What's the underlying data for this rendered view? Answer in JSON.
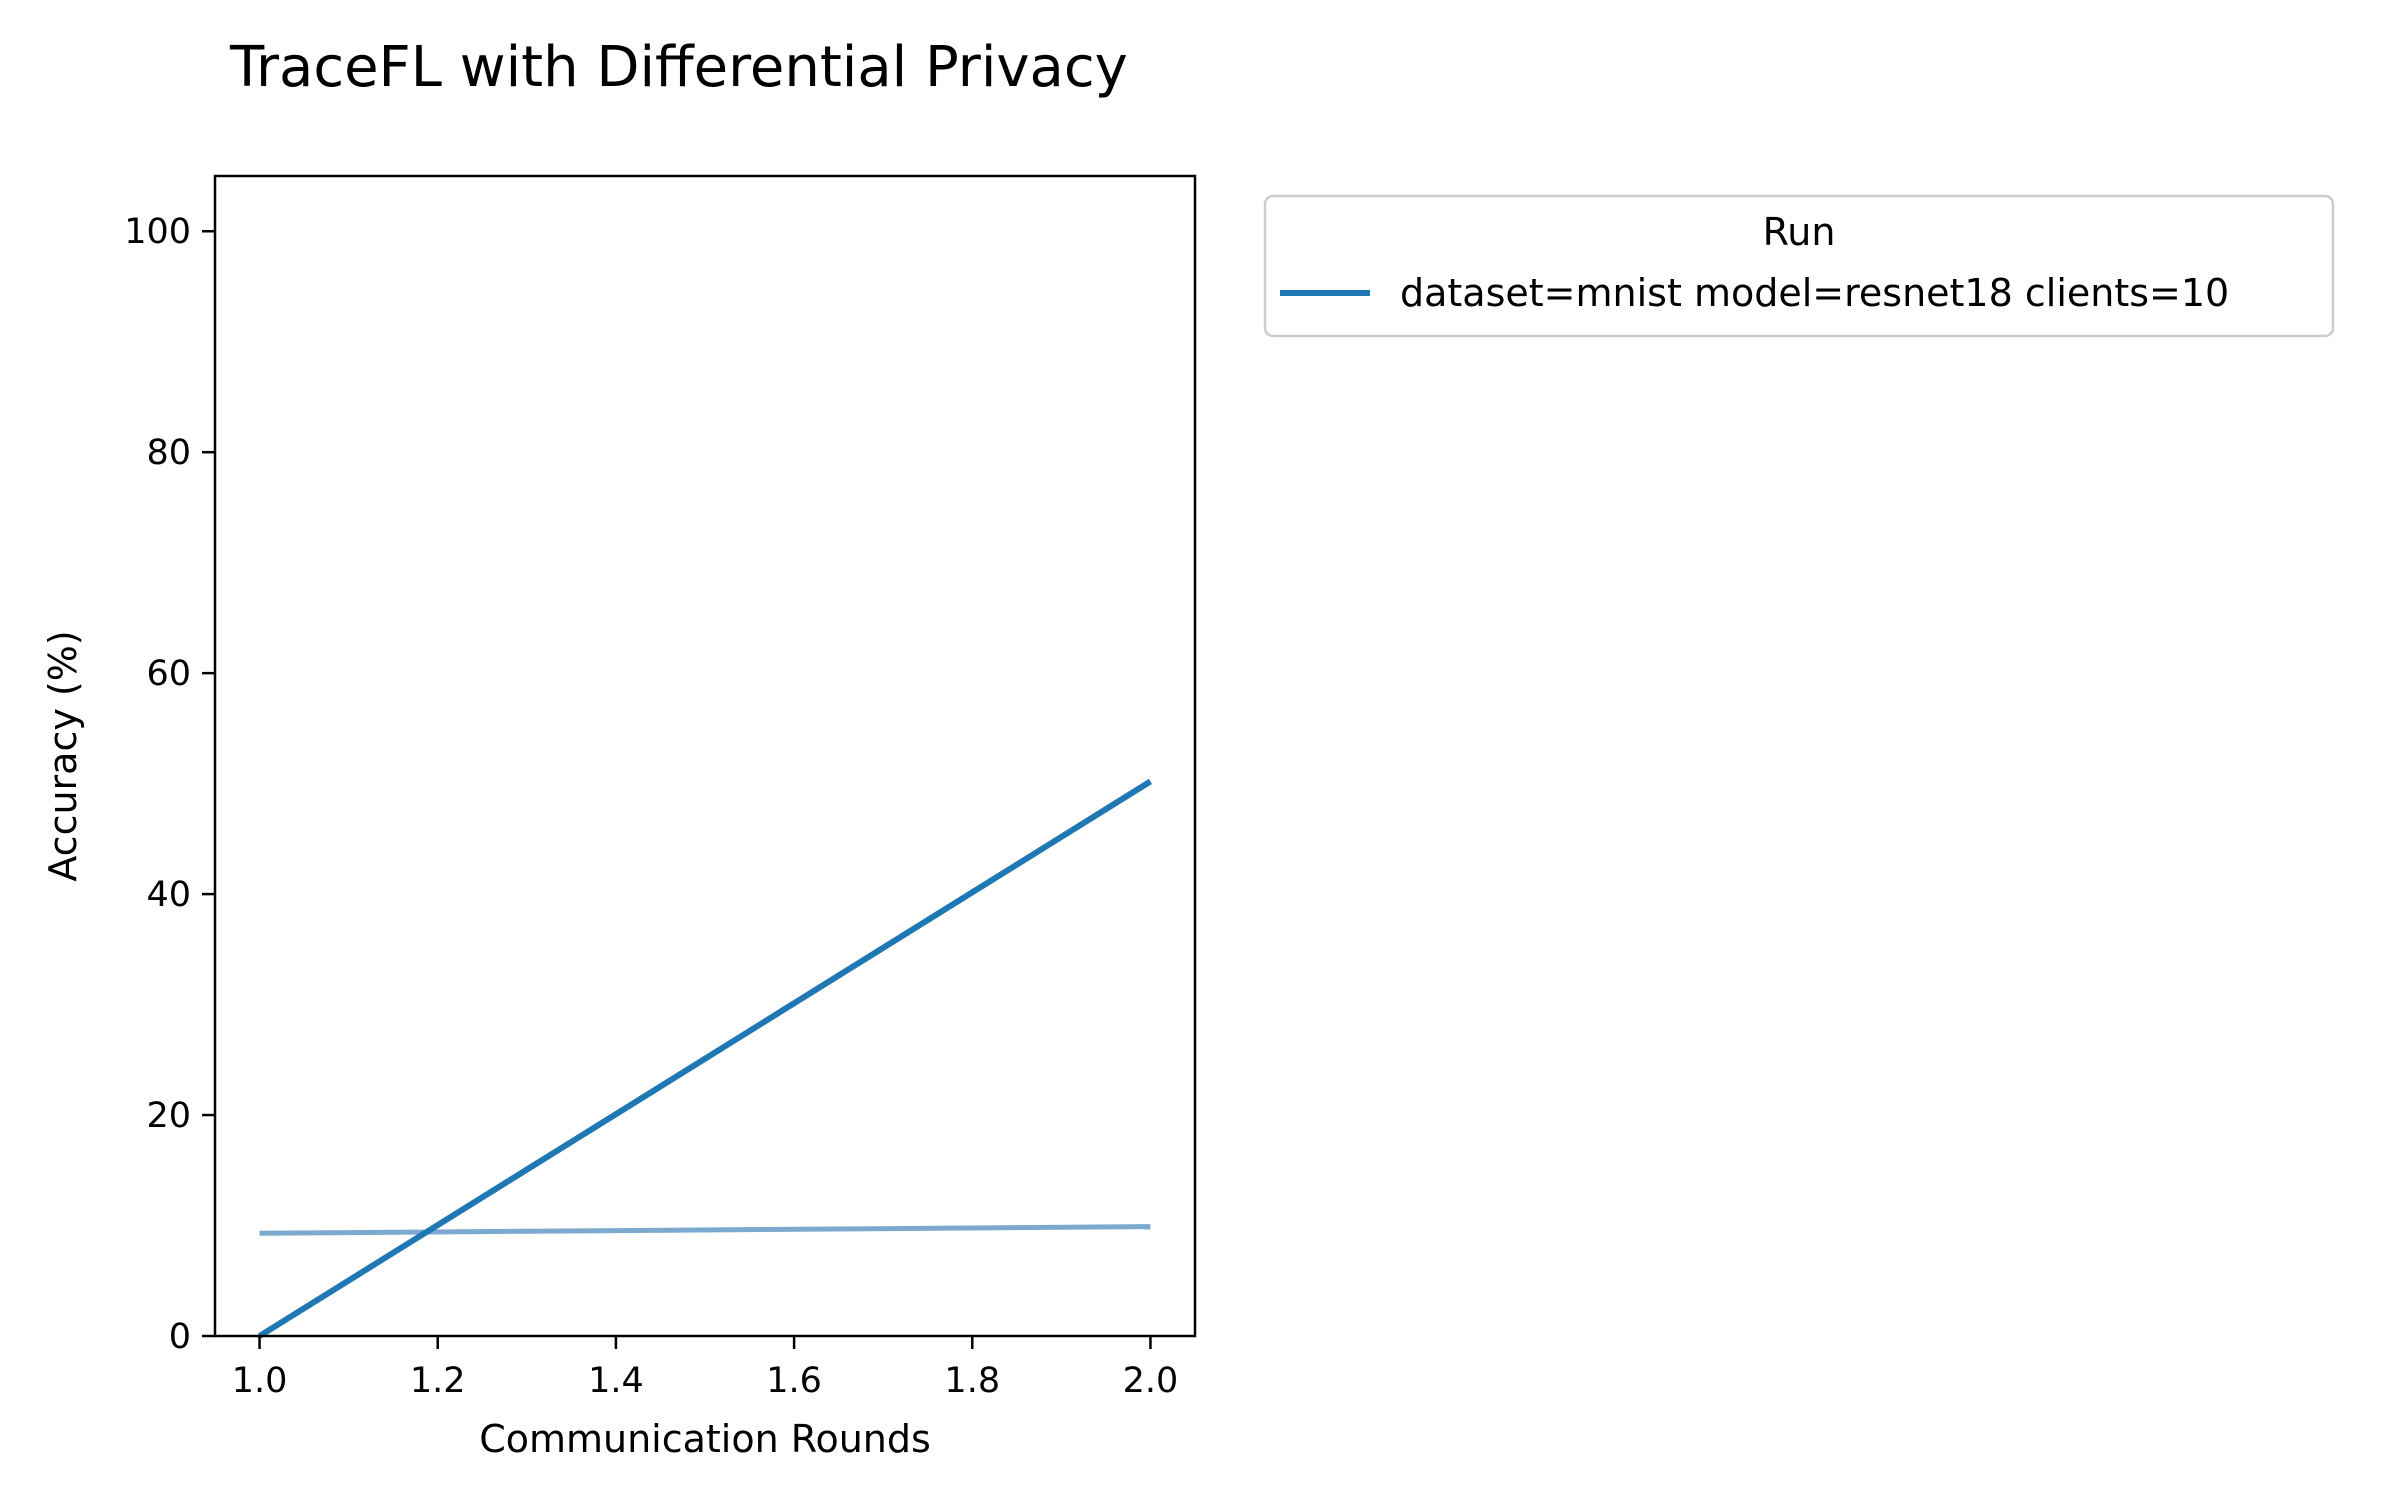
{
  "chart_data": {
    "type": "line",
    "title": "TraceFL with Differential Privacy",
    "xlabel": "Communication Rounds",
    "ylabel": "Accuracy (%)",
    "xlim": [
      0.95,
      2.05
    ],
    "ylim": [
      0,
      105
    ],
    "xticks": [
      "1.0",
      "1.2",
      "1.4",
      "1.6",
      "1.8",
      "2.0"
    ],
    "yticks": [
      "0",
      "20",
      "40",
      "60",
      "80",
      "100"
    ],
    "grid": false,
    "legend": {
      "title": "Run",
      "placement": "outside-top-right",
      "entries": [
        "dataset=mnist model=resnet18 clients=10"
      ]
    },
    "series": [
      {
        "name": "dataset=mnist model=resnet18 clients=10",
        "color": "#1f77b4",
        "x": [
          1.0,
          2.0
        ],
        "y": [
          0.0,
          50.2
        ]
      },
      {
        "color": "#7ba9d0",
        "x": [
          1.0,
          2.0
        ],
        "y": [
          9.3,
          9.9
        ]
      }
    ]
  }
}
